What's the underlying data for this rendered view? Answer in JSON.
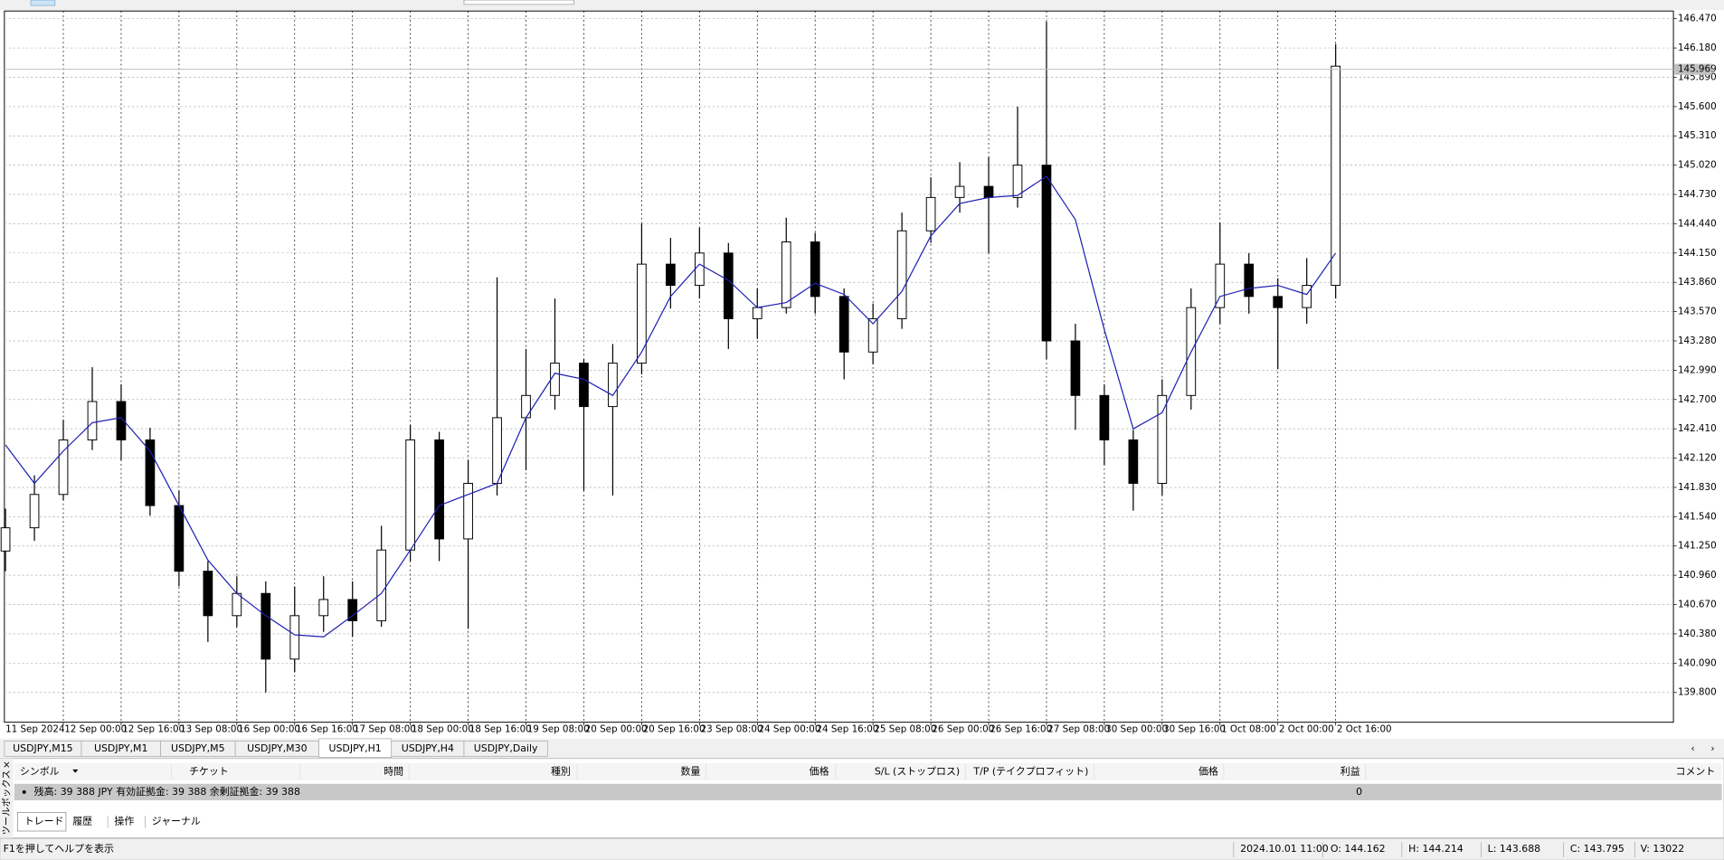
{
  "chart_data": {
    "type": "candlestick",
    "x_labels": [
      "11 Sep 2024",
      "12 Sep 00:00",
      "12 Sep 16:00",
      "13 Sep 08:00",
      "16 Sep 00:00",
      "16 Sep 16:00",
      "17 Sep 08:00",
      "18 Sep 00:00",
      "18 Sep 16:00",
      "19 Sep 08:00",
      "20 Sep 00:00",
      "20 Sep 16:00",
      "23 Sep 08:00",
      "24 Sep 00:00",
      "24 Sep 16:00",
      "25 Sep 08:00",
      "26 Sep 00:00",
      "26 Sep 16:00",
      "27 Sep 08:00",
      "30 Sep 00:00",
      "30 Sep 16:00",
      "1 Oct 08:00",
      "2 Oct 00:00",
      "2 Oct 16:00"
    ],
    "open": [
      141.2,
      141.43,
      141.76,
      142.3,
      142.68,
      142.3,
      141.65,
      141.0,
      140.56,
      140.78,
      140.13,
      140.56,
      140.72,
      140.51,
      141.21,
      142.3,
      141.32,
      141.87,
      142.52,
      142.74,
      143.06,
      142.63,
      143.06,
      144.04,
      143.83,
      144.15,
      143.5,
      143.61,
      144.26,
      143.72,
      143.17,
      143.5,
      144.37,
      144.7,
      144.81,
      144.7,
      145.02,
      143.28,
      142.74,
      142.3,
      141.87,
      142.74,
      143.61,
      144.04,
      143.72,
      143.61,
      143.83
    ],
    "high": [
      141.62,
      141.95,
      142.5,
      143.02,
      142.85,
      142.42,
      141.8,
      141.1,
      140.95,
      140.9,
      140.85,
      140.95,
      140.9,
      141.45,
      142.45,
      142.38,
      142.1,
      143.91,
      143.2,
      143.7,
      143.1,
      143.25,
      144.44,
      144.3,
      144.4,
      144.25,
      143.8,
      144.5,
      144.35,
      143.8,
      143.65,
      144.55,
      144.9,
      145.05,
      145.1,
      145.6,
      146.44,
      143.45,
      142.85,
      142.4,
      142.9,
      143.8,
      144.45,
      144.15,
      143.9,
      144.1,
      146.22
    ],
    "low": [
      141.0,
      141.3,
      141.7,
      142.2,
      142.1,
      141.55,
      140.85,
      140.3,
      140.45,
      139.8,
      140.0,
      140.4,
      140.35,
      140.45,
      141.1,
      141.1,
      140.43,
      141.75,
      142.0,
      142.6,
      141.8,
      141.75,
      142.95,
      143.6,
      143.7,
      143.2,
      143.3,
      143.55,
      143.55,
      142.9,
      143.05,
      143.4,
      144.25,
      144.55,
      144.15,
      144.6,
      143.1,
      142.4,
      142.05,
      141.6,
      141.75,
      142.6,
      143.45,
      143.55,
      143.0,
      143.45,
      143.7
    ],
    "close": [
      141.43,
      141.76,
      142.3,
      142.68,
      142.3,
      141.65,
      141.0,
      140.56,
      140.78,
      140.13,
      140.56,
      140.72,
      140.51,
      141.21,
      142.3,
      141.32,
      141.87,
      142.52,
      142.74,
      143.06,
      142.63,
      143.06,
      144.04,
      143.83,
      144.15,
      143.5,
      143.61,
      144.26,
      143.72,
      143.17,
      143.5,
      144.37,
      144.7,
      144.81,
      144.7,
      145.02,
      143.28,
      142.74,
      142.3,
      141.87,
      142.74,
      143.61,
      144.04,
      143.72,
      143.61,
      143.83,
      146.0
    ],
    "ma": {
      "color": "#1f1fb4",
      "values": [
        142.25,
        141.87,
        142.19,
        142.47,
        142.52,
        142.19,
        141.65,
        141.11,
        140.78,
        140.56,
        140.37,
        140.35,
        140.56,
        140.78,
        141.21,
        141.65,
        141.76,
        141.87,
        142.52,
        142.96,
        142.9,
        142.74,
        143.17,
        143.72,
        144.04,
        143.88,
        143.61,
        143.66,
        143.85,
        143.74,
        143.45,
        143.77,
        144.32,
        144.64,
        144.7,
        144.72,
        144.91,
        144.48,
        143.39,
        142.41,
        142.57,
        143.17,
        143.72,
        143.8,
        143.83,
        143.74,
        144.15
      ]
    },
    "ylim": [
      139.505,
      146.546
    ],
    "yticks": [
      {
        "value": 146.47,
        "label": "146.470"
      },
      {
        "value": 146.18,
        "label": "146.180"
      },
      {
        "value": 145.89,
        "label": "145.890"
      },
      {
        "value": 145.6,
        "label": "145.600"
      },
      {
        "value": 145.31,
        "label": "145.310"
      },
      {
        "value": 145.02,
        "label": "145.020"
      },
      {
        "value": 144.73,
        "label": "144.730"
      },
      {
        "value": 144.44,
        "label": "144.440"
      },
      {
        "value": 144.15,
        "label": "144.150"
      },
      {
        "value": 143.86,
        "label": "143.860"
      },
      {
        "value": 143.57,
        "label": "143.570"
      },
      {
        "value": 143.28,
        "label": "143.280"
      },
      {
        "value": 142.99,
        "label": "142.990"
      },
      {
        "value": 142.7,
        "label": "142.700"
      },
      {
        "value": 142.41,
        "label": "142.410"
      },
      {
        "value": 142.12,
        "label": "142.120"
      },
      {
        "value": 141.83,
        "label": "141.830"
      },
      {
        "value": 141.54,
        "label": "141.540"
      },
      {
        "value": 141.25,
        "label": "141.250"
      },
      {
        "value": 140.96,
        "label": "140.960"
      },
      {
        "value": 140.67,
        "label": "140.670"
      },
      {
        "value": 140.38,
        "label": "140.380"
      },
      {
        "value": 140.09,
        "label": "140.090"
      },
      {
        "value": 139.8,
        "label": "139.800"
      }
    ],
    "current_price": 145.969,
    "grid": true
  },
  "symbol_tabs": [
    "USDJPY,M15",
    "USDJPY,M1",
    "USDJPY,M5",
    "USDJPY,M30",
    "USDJPY,H1",
    "USDJPY,H4",
    "USDJPY,Daily"
  ],
  "active_tab": 4,
  "terminal": {
    "side_title": "ツールボックス",
    "headers": [
      "シンボル",
      "チケット",
      "時間",
      "種別",
      "数量",
      "価格",
      "S/L (ストップロス)",
      "T/P (テイクプロフィット)",
      "価格",
      "利益",
      "コメント"
    ],
    "balance_text": "残高: 39 388 JPY  有効証拠金: 39 388  余剰証拠金: 39 388",
    "balance_profit": "0",
    "bottom_tabs": [
      "トレード",
      "履歴",
      "操作",
      "ジャーナル"
    ]
  },
  "status": {
    "help": "F1を押してヘルプを表示",
    "time": "2024.10.01 11:00",
    "o": "O: 144.162",
    "h": "H: 144.214",
    "l": "L: 143.688",
    "c": "C: 143.795",
    "v": "V: 13022"
  }
}
